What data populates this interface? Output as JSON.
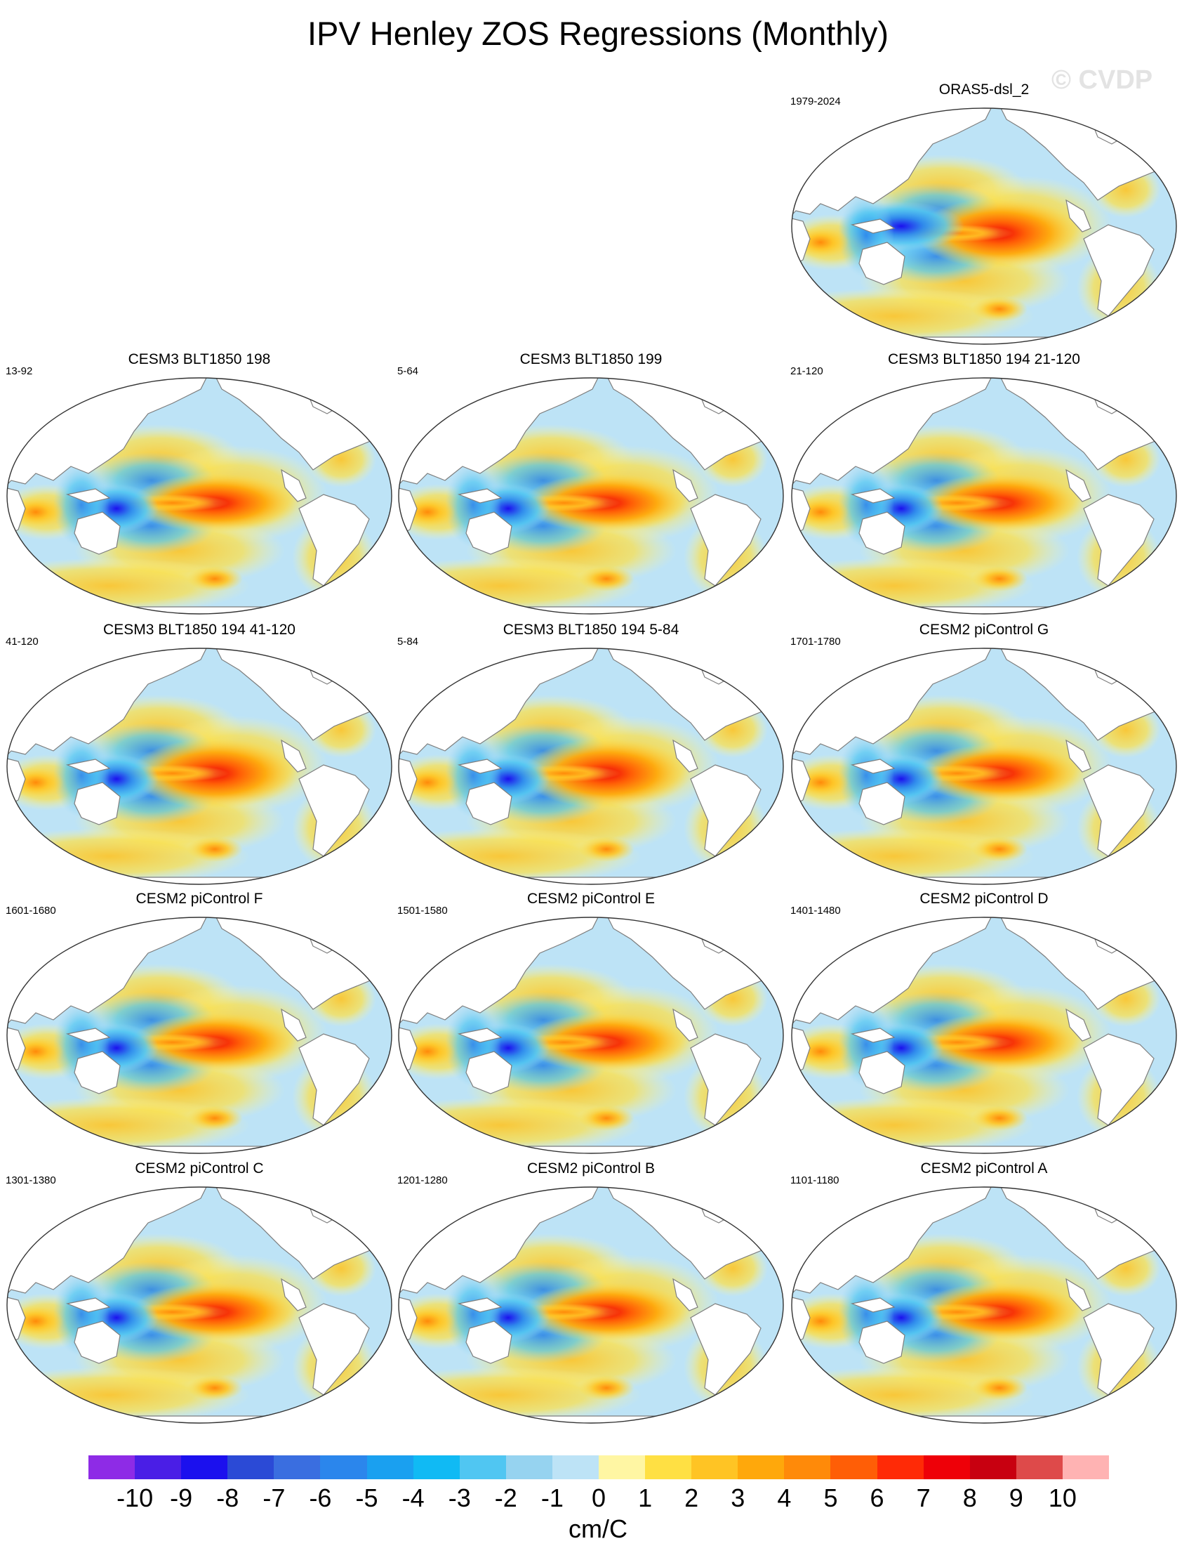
{
  "figure": {
    "title": "IPV Henley ZOS Regressions (Monthly)",
    "watermark": "© CVDP"
  },
  "panels": [
    {
      "title": "ORAS5-dsl_2",
      "years": "1979-2024",
      "pattern": "obs"
    },
    {
      "title": "CESM3 BLT1850 198",
      "years": "13-92",
      "pattern": "model"
    },
    {
      "title": "CESM3 BLT1850 199",
      "years": "5-64",
      "pattern": "model"
    },
    {
      "title": "CESM3 BLT1850 194 21-120",
      "years": "21-120",
      "pattern": "model"
    },
    {
      "title": "CESM3 BLT1850 194 41-120",
      "years": "41-120",
      "pattern": "model_strong"
    },
    {
      "title": "CESM3 BLT1850 194 5-84",
      "years": "5-84",
      "pattern": "model_strong"
    },
    {
      "title": "CESM2 piControl G",
      "years": "1701-1780",
      "pattern": "cesm2"
    },
    {
      "title": "CESM2 piControl F",
      "years": "1601-1680",
      "pattern": "cesm2"
    },
    {
      "title": "CESM2 piControl E",
      "years": "1501-1580",
      "pattern": "cesm2"
    },
    {
      "title": "CESM2 piControl D",
      "years": "1401-1480",
      "pattern": "cesm2"
    },
    {
      "title": "CESM2 piControl C",
      "years": "1301-1380",
      "pattern": "cesm2"
    },
    {
      "title": "CESM2 piControl B",
      "years": "1201-1280",
      "pattern": "cesm2"
    },
    {
      "title": "CESM2 piControl A",
      "years": "1101-1180",
      "pattern": "cesm2"
    }
  ],
  "colorbar": {
    "unit": "cm/C",
    "ticks": [
      "-10",
      "-9",
      "-8",
      "-7",
      "-6",
      "-5",
      "-4",
      "-3",
      "-2",
      "-1",
      "0",
      "1",
      "2",
      "3",
      "4",
      "5",
      "6",
      "7",
      "8",
      "9",
      "10"
    ],
    "colors": [
      "#8e2be6",
      "#4a1ee6",
      "#1b10ee",
      "#2b4ad6",
      "#3a6ee0",
      "#2b86ec",
      "#1aa0f0",
      "#10baf4",
      "#50c6f2",
      "#96d3f0",
      "#bde3f6",
      "#fff6a3",
      "#ffe043",
      "#ffc424",
      "#ffa80b",
      "#ff8a09",
      "#ff5e06",
      "#ff2a06",
      "#ee0008",
      "#c80010",
      "#de4a4a",
      "#ffb3b3"
    ]
  }
}
